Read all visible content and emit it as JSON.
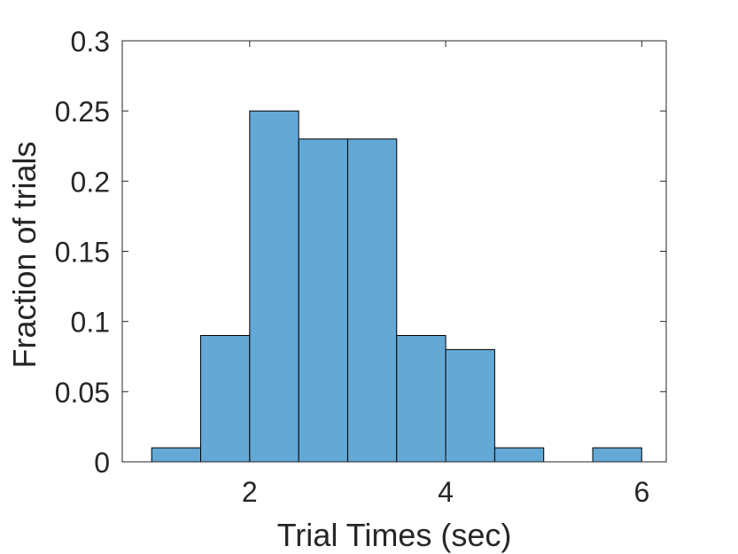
{
  "chart_data": {
    "type": "bar",
    "subtype": "histogram",
    "bin_edges": [
      1,
      1.5,
      2,
      2.5,
      3,
      3.5,
      4,
      4.5,
      5,
      5.5,
      6
    ],
    "values": [
      0.01,
      0.09,
      0.25,
      0.23,
      0.23,
      0.09,
      0.08,
      0.01,
      0,
      0.01
    ],
    "xlabel": "Trial Times (sec)",
    "ylabel": "Fraction of trials",
    "xlim": [
      0.7,
      6.25
    ],
    "ylim": [
      0,
      0.3
    ],
    "xticks": [
      2,
      4,
      6
    ],
    "xtick_labels": [
      "2",
      "4",
      "6"
    ],
    "yticks": [
      0,
      0.05,
      0.1,
      0.15,
      0.2,
      0.25,
      0.3
    ],
    "ytick_labels": [
      "0",
      "0.05",
      "0.1",
      "0.15",
      "0.2",
      "0.25",
      "0.3"
    ],
    "grid": false,
    "box": true,
    "bar_color": "#64a8d6",
    "edge_color": "#000000"
  }
}
